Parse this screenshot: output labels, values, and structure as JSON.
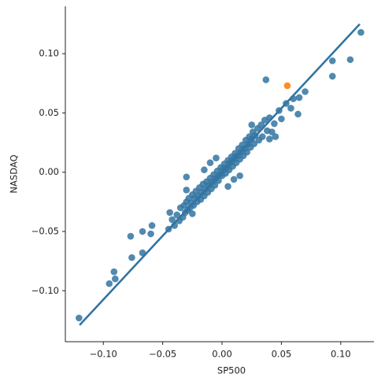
{
  "chart_data": {
    "type": "scatter",
    "x_label": "SP500",
    "y_label": "NASDAQ",
    "color": "#3274a1",
    "x": [
      -0.1205,
      -0.095,
      -0.091,
      -0.09,
      -0.077,
      -0.076,
      -0.067,
      -0.067,
      -0.06,
      -0.059,
      0.117,
      0.108,
      0.093,
      0.093,
      0.037,
      0.07,
      0.065,
      0.064,
      0.058,
      0.042,
      -0.03,
      -0.03,
      -0.044,
      -0.045,
      -0.042,
      -0.04,
      -0.038,
      -0.036,
      -0.035,
      -0.033,
      -0.032,
      -0.031,
      -0.03,
      -0.029,
      -0.028,
      -0.027,
      -0.026,
      -0.025,
      -0.024,
      -0.023,
      -0.022,
      -0.021,
      -0.02,
      -0.019,
      -0.018,
      -0.017,
      -0.016,
      -0.015,
      -0.014,
      -0.013,
      -0.012,
      -0.011,
      -0.01,
      -0.009,
      -0.008,
      -0.007,
      -0.006,
      -0.005,
      -0.004,
      -0.003,
      -0.002,
      -0.001,
      0.0,
      0.001,
      0.002,
      0.003,
      0.004,
      0.005,
      0.006,
      0.007,
      0.008,
      0.009,
      0.01,
      0.011,
      0.012,
      0.013,
      0.014,
      0.015,
      0.016,
      0.017,
      0.018,
      0.019,
      0.02,
      0.021,
      0.022,
      0.023,
      0.024,
      0.025,
      0.026,
      0.027,
      0.028,
      0.03,
      0.031,
      0.033,
      0.034,
      0.036,
      0.038,
      0.04,
      0.044,
      0.048,
      0.05,
      0.054,
      0.06,
      0.045,
      0.04,
      -0.01,
      -0.015,
      0.005,
      0.015,
      -0.025,
      0.025,
      -0.005,
      0.01
    ],
    "y": [
      -0.123,
      -0.094,
      -0.084,
      -0.09,
      -0.054,
      -0.072,
      -0.068,
      -0.05,
      -0.052,
      -0.045,
      0.118,
      0.095,
      0.094,
      0.081,
      0.078,
      0.068,
      0.063,
      0.049,
      0.054,
      0.034,
      -0.004,
      -0.015,
      -0.034,
      -0.048,
      -0.04,
      -0.045,
      -0.036,
      -0.041,
      -0.03,
      -0.038,
      -0.028,
      -0.034,
      -0.025,
      -0.032,
      -0.022,
      -0.03,
      -0.026,
      -0.019,
      -0.028,
      -0.022,
      -0.016,
      -0.025,
      -0.02,
      -0.013,
      -0.023,
      -0.017,
      -0.01,
      -0.02,
      -0.014,
      -0.008,
      -0.017,
      -0.011,
      -0.005,
      -0.014,
      -0.008,
      -0.002,
      -0.011,
      -0.005,
      0.001,
      -0.007,
      -0.002,
      0.004,
      -0.003,
      0.002,
      0.007,
      -0.001,
      0.004,
      0.01,
      0.002,
      0.008,
      0.013,
      0.005,
      0.011,
      0.016,
      0.008,
      0.014,
      0.02,
      0.011,
      0.017,
      0.023,
      0.014,
      0.02,
      0.027,
      0.017,
      0.024,
      0.03,
      0.021,
      0.028,
      0.034,
      0.024,
      0.031,
      0.037,
      0.027,
      0.04,
      0.03,
      0.044,
      0.035,
      0.046,
      0.041,
      0.052,
      0.045,
      0.058,
      0.062,
      0.03,
      0.028,
      0.008,
      0.002,
      -0.012,
      -0.003,
      -0.035,
      0.04,
      0.012,
      -0.006
    ],
    "highlight": {
      "x": 0.055,
      "y": 0.073,
      "color": "#ff7f0e"
    },
    "fit_line": {
      "x": [
        -0.12,
        0.116
      ],
      "y": [
        -0.129,
        0.125
      ],
      "color": "#3274a1"
    },
    "xlim": [
      -0.132,
      0.128
    ],
    "ylim": [
      -0.143,
      0.14
    ],
    "xticks": [
      {
        "value": -0.1,
        "label": "−0.10"
      },
      {
        "value": -0.05,
        "label": "−0.05"
      },
      {
        "value": 0,
        "label": "0.00"
      },
      {
        "value": 0.05,
        "label": "0.05"
      },
      {
        "value": 0.1,
        "label": "0.10"
      }
    ],
    "yticks": [
      {
        "value": -0.1,
        "label": "−0.10"
      },
      {
        "value": -0.05,
        "label": "−0.05"
      },
      {
        "value": 0,
        "label": "0.00"
      },
      {
        "value": 0.05,
        "label": "0.05"
      },
      {
        "value": 0.1,
        "label": "0.10"
      }
    ]
  }
}
